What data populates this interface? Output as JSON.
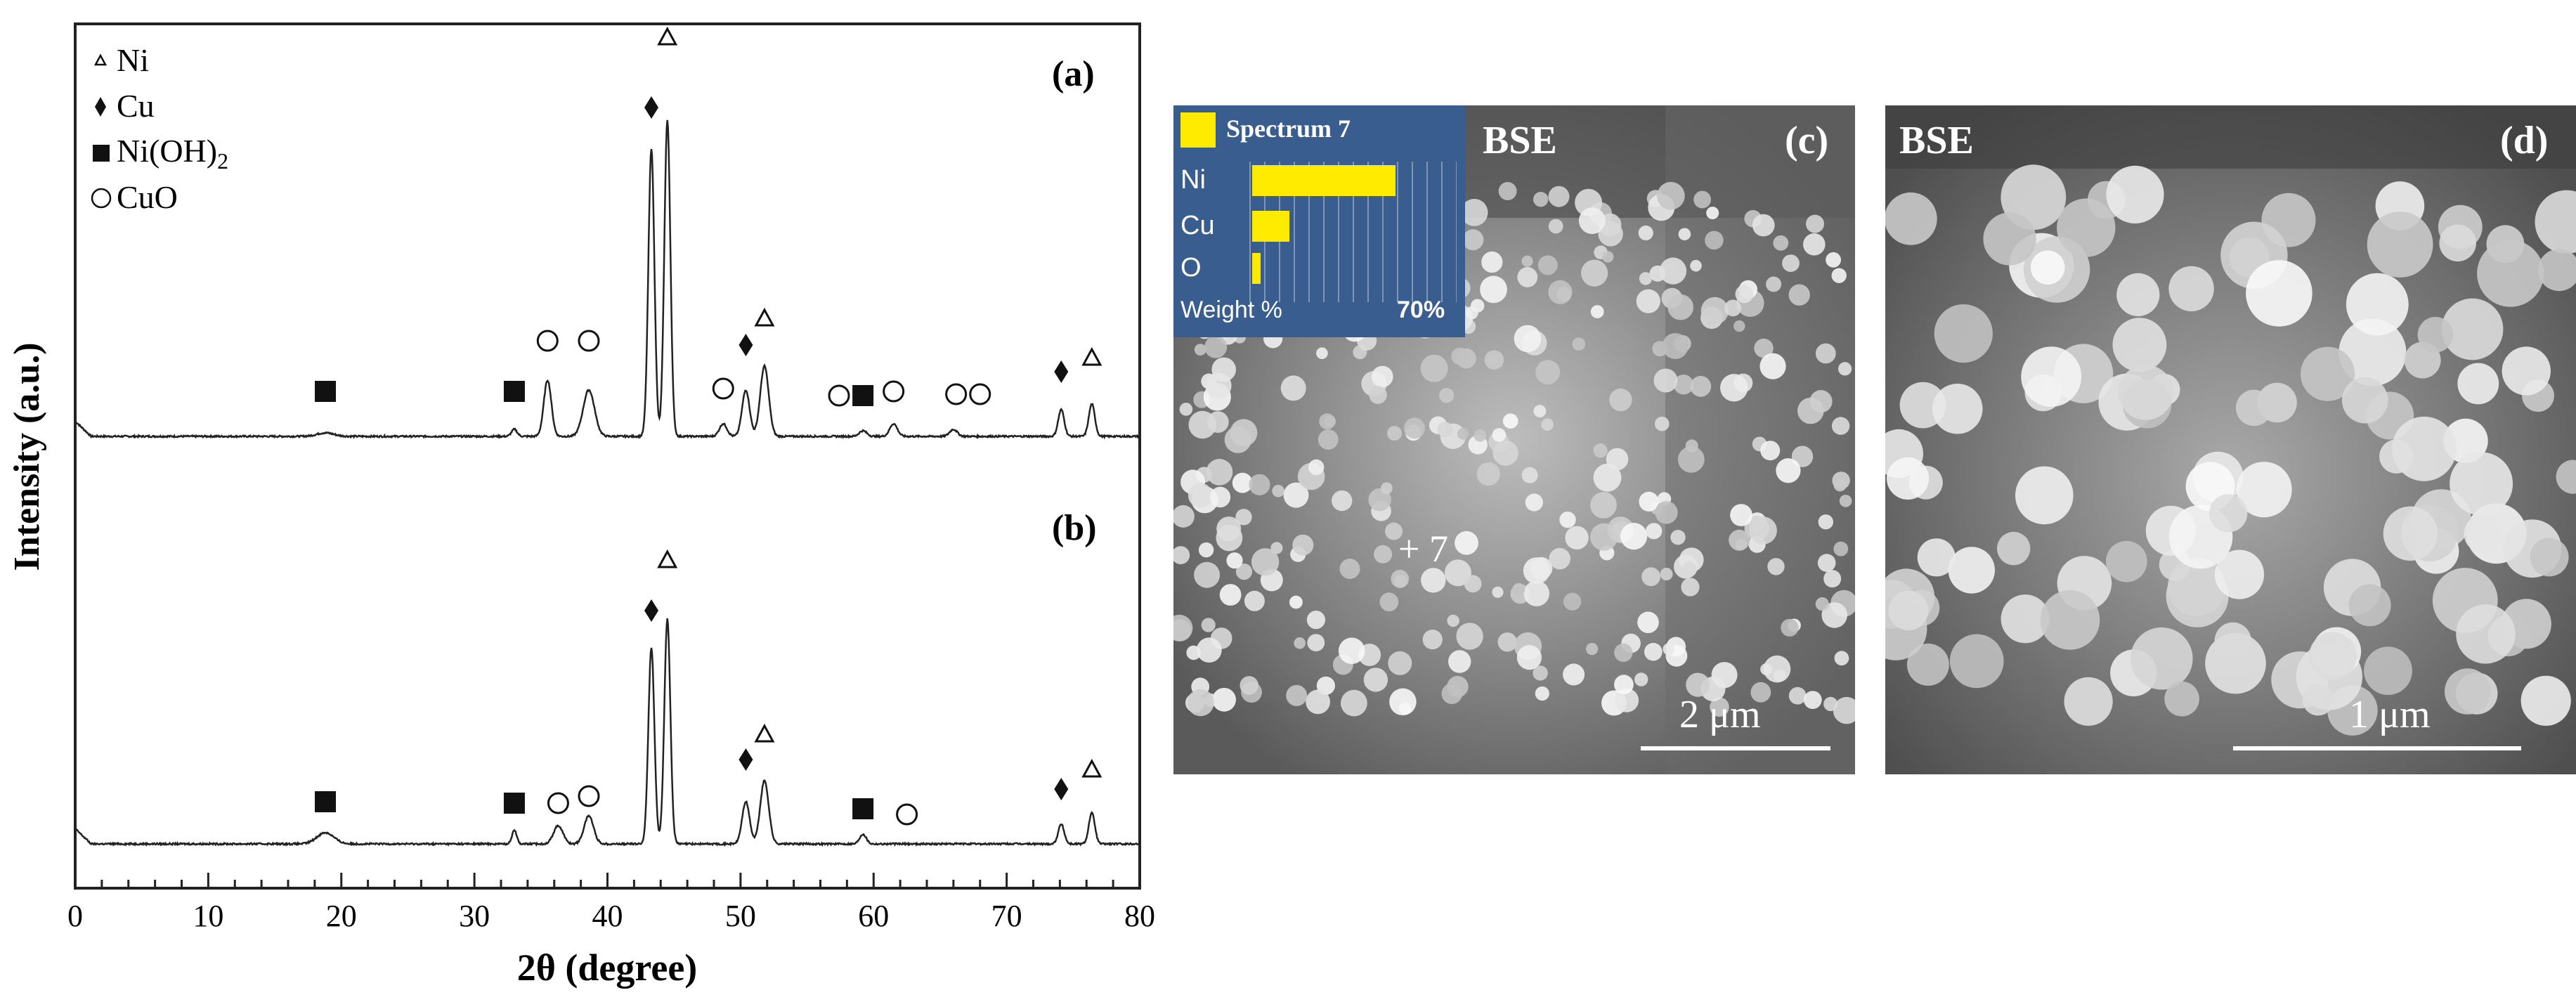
{
  "chart_data": {
    "type": "line",
    "xlabel": "2θ (degree)",
    "ylabel": "Intensity (a.u.)",
    "xlim": [
      0,
      80
    ],
    "xticks": [
      0,
      10,
      20,
      30,
      40,
      50,
      60,
      70,
      80
    ],
    "grid": false,
    "legend_position": "top-left",
    "legend": [
      {
        "symbol": "triangle",
        "label": "Ni"
      },
      {
        "symbol": "diamond",
        "label": "Cu"
      },
      {
        "symbol": "square",
        "label": "Ni(OH)",
        "sub": "2"
      },
      {
        "symbol": "circle",
        "label": "CuO"
      }
    ],
    "series": [
      {
        "panel": "(a)",
        "baseline": 0.2,
        "peaks": [
          [
            18.8,
            0.25,
            0.9
          ],
          [
            33.0,
            0.5,
            0.3
          ],
          [
            35.5,
            4.0,
            0.4
          ],
          [
            38.6,
            3.3,
            0.6
          ],
          [
            43.3,
            20.5,
            0.32
          ],
          [
            44.5,
            22.5,
            0.32
          ],
          [
            48.7,
            0.9,
            0.4
          ],
          [
            50.4,
            3.3,
            0.4
          ],
          [
            51.8,
            5.0,
            0.45
          ],
          [
            59.2,
            0.4,
            0.4
          ],
          [
            61.5,
            0.9,
            0.4
          ],
          [
            66.0,
            0.5,
            0.4
          ],
          [
            74.1,
            1.9,
            0.32
          ],
          [
            76.4,
            2.3,
            0.32
          ]
        ],
        "markers": [
          {
            "x": 18.8,
            "y": 3.4,
            "symbol": "square"
          },
          {
            "x": 33.0,
            "y": 3.4,
            "symbol": "square"
          },
          {
            "x": 35.5,
            "y": 7.0,
            "symbol": "circle"
          },
          {
            "x": 38.6,
            "y": 7.0,
            "symbol": "circle"
          },
          {
            "x": 43.3,
            "y": 23.6,
            "symbol": "diamond"
          },
          {
            "x": 44.5,
            "y": 28.6,
            "symbol": "triangle"
          },
          {
            "x": 48.7,
            "y": 3.6,
            "symbol": "circle"
          },
          {
            "x": 50.4,
            "y": 6.7,
            "symbol": "diamond"
          },
          {
            "x": 51.8,
            "y": 8.6,
            "symbol": "triangle"
          },
          {
            "x": 57.4,
            "y": 3.1,
            "symbol": "circle"
          },
          {
            "x": 59.2,
            "y": 3.1,
            "symbol": "square"
          },
          {
            "x": 61.5,
            "y": 3.4,
            "symbol": "circle"
          },
          {
            "x": 66.2,
            "y": 3.2,
            "symbol": "circle"
          },
          {
            "x": 68.0,
            "y": 3.2,
            "symbol": "circle"
          },
          {
            "x": 74.1,
            "y": 4.8,
            "symbol": "diamond"
          },
          {
            "x": 76.4,
            "y": 5.8,
            "symbol": "triangle"
          }
        ]
      },
      {
        "panel": "(b)",
        "baseline": 0.2,
        "peaks": [
          [
            18.8,
            0.8,
            0.9
          ],
          [
            33.0,
            1.0,
            0.25
          ],
          [
            36.3,
            1.3,
            0.5
          ],
          [
            38.6,
            2.0,
            0.5
          ],
          [
            43.3,
            14.0,
            0.32
          ],
          [
            44.5,
            16.0,
            0.32
          ],
          [
            50.4,
            3.0,
            0.4
          ],
          [
            51.8,
            4.5,
            0.45
          ],
          [
            59.2,
            0.7,
            0.35
          ],
          [
            74.1,
            1.4,
            0.32
          ],
          [
            76.4,
            2.2,
            0.32
          ]
        ],
        "markers": [
          {
            "x": 18.8,
            "y": 3.2,
            "symbol": "square"
          },
          {
            "x": 33.0,
            "y": 3.1,
            "symbol": "square"
          },
          {
            "x": 36.3,
            "y": 3.1,
            "symbol": "circle"
          },
          {
            "x": 38.6,
            "y": 3.6,
            "symbol": "circle"
          },
          {
            "x": 43.3,
            "y": 16.8,
            "symbol": "diamond"
          },
          {
            "x": 44.5,
            "y": 20.4,
            "symbol": "triangle"
          },
          {
            "x": 50.4,
            "y": 6.2,
            "symbol": "diamond"
          },
          {
            "x": 51.8,
            "y": 8.0,
            "symbol": "triangle"
          },
          {
            "x": 59.2,
            "y": 2.7,
            "symbol": "square"
          },
          {
            "x": 62.5,
            "y": 2.3,
            "symbol": "circle"
          },
          {
            "x": 74.1,
            "y": 4.1,
            "symbol": "diamond"
          },
          {
            "x": 76.4,
            "y": 5.5,
            "symbol": "triangle"
          }
        ]
      }
    ]
  },
  "panels": {
    "c": {
      "label": "(c)",
      "mode": "BSE",
      "scale_bar": "2 μm",
      "point_marker": "+ 7"
    },
    "d": {
      "label": "(d)",
      "mode": "BSE",
      "scale_bar": "1 μm"
    }
  },
  "eds": {
    "title": "Spectrum 7",
    "color": "#ffeb00",
    "elements": [
      {
        "name": "Ni",
        "weight_pct": 50
      },
      {
        "name": "Cu",
        "weight_pct": 13
      },
      {
        "name": "O",
        "weight_pct": 3
      }
    ],
    "axis_label": "Weight %",
    "axis_max_label": "70%",
    "axis_max": 70
  }
}
